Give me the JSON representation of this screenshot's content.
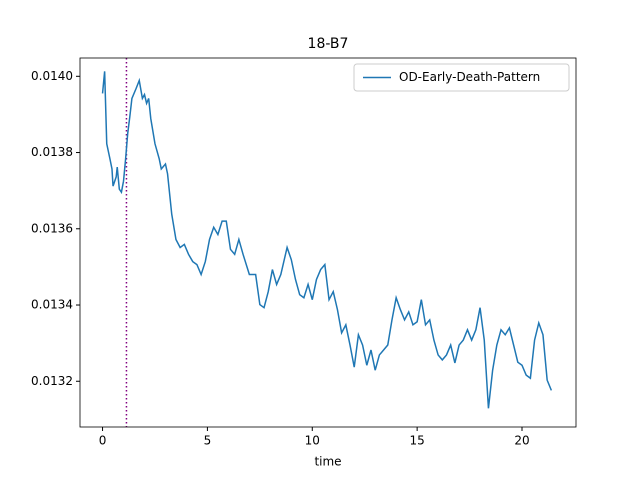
{
  "chart_data": {
    "type": "line",
    "title": "18-B7",
    "x_label": "time",
    "legend_loc": "upper right",
    "xlim": [
      -1.075,
      22.575
    ],
    "xticks": [
      0,
      5,
      10,
      15,
      20
    ],
    "ylim": [
      0.01308,
      0.014048
    ],
    "yticks": [
      0.0132,
      0.0134,
      0.0136,
      0.0138,
      {
        "value": 0.014,
        "label": "0.0140"
      }
    ],
    "vlines": [
      {
        "x": 1.14,
        "color": "#800080"
      }
    ],
    "x": [
      0,
      0.1,
      0.2,
      0.35,
      0.45,
      0.5,
      0.65,
      0.7,
      0.8,
      0.9,
      1.0,
      1.1,
      1.2,
      1.3,
      1.4,
      1.6,
      1.75,
      1.9,
      2.0,
      2.1,
      2.2,
      2.3,
      2.5,
      2.7,
      2.8,
      3.0,
      3.1,
      3.3,
      3.5,
      3.7,
      3.9,
      4.1,
      4.3,
      4.5,
      4.7,
      4.9,
      5.1,
      5.3,
      5.5,
      5.7,
      5.9,
      6.1,
      6.3,
      6.5,
      6.7,
      7.0,
      7.3,
      7.5,
      7.7,
      7.9,
      8.1,
      8.3,
      8.5,
      8.8,
      9.0,
      9.2,
      9.4,
      9.6,
      9.8,
      10.0,
      10.2,
      10.4,
      10.6,
      10.8,
      11.0,
      11.2,
      11.4,
      11.6,
      11.8,
      12.0,
      12.2,
      12.4,
      12.6,
      12.8,
      13.0,
      13.2,
      13.4,
      13.6,
      13.8,
      14.0,
      14.2,
      14.4,
      14.6,
      14.8,
      15.0,
      15.2,
      15.4,
      15.6,
      15.8,
      16.0,
      16.2,
      16.4,
      16.6,
      16.8,
      17.0,
      17.2,
      17.4,
      17.6,
      17.8,
      18.0,
      18.2,
      18.4,
      18.6,
      18.8,
      19.0,
      19.2,
      19.4,
      19.6,
      19.8,
      20.0,
      20.2,
      20.4,
      20.6,
      20.8,
      21.0,
      21.2,
      21.4
    ],
    "series": [
      {
        "name": "OD-Early-Death-Pattern",
        "color": "#1f77b4",
        "values": [
          0.013955,
          0.014013,
          0.013823,
          0.013784,
          0.013757,
          0.013712,
          0.013736,
          0.013762,
          0.013704,
          0.013696,
          0.013725,
          0.013784,
          0.01385,
          0.013894,
          0.013942,
          0.013968,
          0.013989,
          0.013942,
          0.013952,
          0.013929,
          0.013942,
          0.013889,
          0.013823,
          0.013784,
          0.013757,
          0.01377,
          0.013744,
          0.013638,
          0.013572,
          0.013551,
          0.013559,
          0.013533,
          0.013514,
          0.013506,
          0.01348,
          0.013514,
          0.013572,
          0.013604,
          0.013585,
          0.01362,
          0.01362,
          0.013546,
          0.013533,
          0.013572,
          0.013533,
          0.01348,
          0.01348,
          0.013401,
          0.013393,
          0.013435,
          0.013493,
          0.013454,
          0.01348,
          0.013551,
          0.013519,
          0.013467,
          0.013427,
          0.013419,
          0.013454,
          0.013414,
          0.013467,
          0.013493,
          0.013506,
          0.013414,
          0.013435,
          0.013388,
          0.013327,
          0.013348,
          0.013295,
          0.013237,
          0.013322,
          0.013295,
          0.013242,
          0.013282,
          0.013229,
          0.013269,
          0.013282,
          0.013295,
          0.013361,
          0.013419,
          0.013388,
          0.013361,
          0.013382,
          0.013348,
          0.013356,
          0.013414,
          0.013348,
          0.013361,
          0.013308,
          0.013269,
          0.013256,
          0.013269,
          0.013295,
          0.013248,
          0.013295,
          0.013308,
          0.013335,
          0.013308,
          0.013335,
          0.013393,
          0.013308,
          0.013129,
          0.013229,
          0.013295,
          0.013335,
          0.013322,
          0.01334,
          0.013295,
          0.01325,
          0.013242,
          0.013216,
          0.013208,
          0.013308,
          0.013353,
          0.013322,
          0.013203,
          0.013176
        ]
      }
    ]
  }
}
